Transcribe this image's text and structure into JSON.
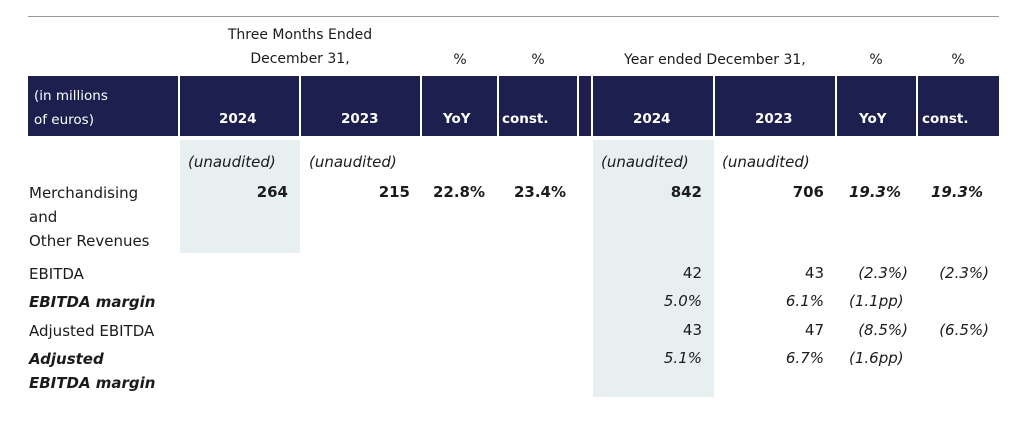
{
  "header": {
    "three_months_line1": "Three Months Ended",
    "three_months_line2": "December 31,",
    "year_ended": "Year ended December 31,",
    "pct": "%"
  },
  "band": {
    "unit_line1": "(in millions",
    "unit_line2": "of euros)",
    "col_2024": "2024",
    "col_2023": "2023",
    "col_yoy": "YoY",
    "col_const": "const."
  },
  "colors": {
    "band": "#1d1f4f",
    "shade": "#e8eff1"
  },
  "unaudited": "(unaudited)",
  "rows": {
    "merch": {
      "label_line1": "Merchandising",
      "label_line2": "and",
      "label_line3": "Other Revenues",
      "q_2024": "264",
      "q_2023": "215",
      "q_yoy": "22.8%",
      "q_const": "23.4%",
      "y_2024": "842",
      "y_2023": "706",
      "y_yoy": "19.3%",
      "y_const": "19.3%"
    },
    "ebitda": {
      "label": "EBITDA",
      "y_2024": "42",
      "y_2023": "43",
      "y_yoy": "(2.3%)",
      "y_const": "(2.3%)"
    },
    "ebitda_margin": {
      "label": "EBITDA margin",
      "y_2024": "5.0%",
      "y_2023": "6.1%",
      "y_yoy": "(1.1pp)"
    },
    "adj_ebitda": {
      "label": "Adjusted EBITDA",
      "y_2024": "43",
      "y_2023": "47",
      "y_yoy": "(8.5%)",
      "y_const": "(6.5%)"
    },
    "adj_margin": {
      "label_line1": "Adjusted",
      "label_line2": "EBITDA margin",
      "y_2024": "5.1%",
      "y_2023": "6.7%",
      "y_yoy": "(1.6pp)"
    }
  }
}
